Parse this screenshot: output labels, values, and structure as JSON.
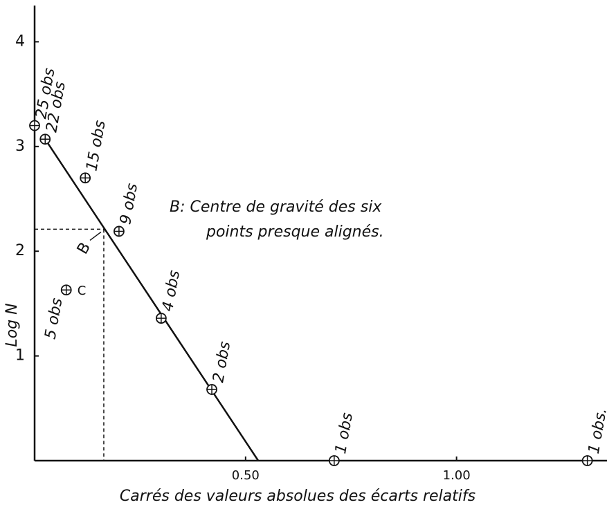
{
  "chart_data": {
    "type": "scatter",
    "xlabel": "Carrés des valeurs absolues des écarts relatifs",
    "ylabel": "Log N",
    "x": [
      0,
      0.025,
      0.12,
      0.2,
      0.3,
      0.42,
      0.71,
      1.31,
      0.075
    ],
    "values": [
      3.2,
      3.07,
      2.7,
      2.19,
      1.36,
      0.68,
      0,
      0,
      1.63
    ],
    "point_labels": [
      "25 obs",
      "22 obs",
      "15 obs",
      "9 obs",
      "4 obs",
      "2 obs",
      "1 obs",
      "1 obs.",
      "5 obs"
    ],
    "line": {
      "x": [
        0.025,
        0.53
      ],
      "values": [
        3.07,
        0
      ]
    },
    "reference": {
      "x": 0.164,
      "y": 2.21,
      "label": "B"
    },
    "other_label": "C",
    "annotation": [
      "B: Centre de gravité des six",
      "points presque alignés."
    ],
    "xlim": [
      0,
      1.35
    ],
    "ylim": [
      0,
      4.3
    ],
    "xticks": [
      {
        "value": 0.5,
        "label": "0.50"
      },
      {
        "value": 1,
        "label": "1.00"
      }
    ],
    "yticks": [
      1,
      2,
      3,
      4
    ],
    "color": "#111111"
  }
}
